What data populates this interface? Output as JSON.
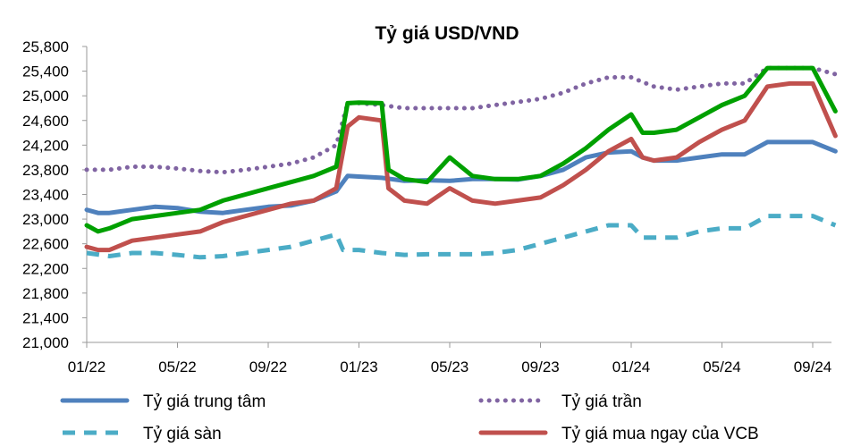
{
  "chart_data": {
    "type": "line",
    "title": "Tỷ giá USD/VND",
    "xlabel": "",
    "ylabel": "",
    "x_ticks": [
      "01/22",
      "05/22",
      "09/22",
      "01/23",
      "05/23",
      "09/23",
      "01/24",
      "05/24",
      "09/24"
    ],
    "y_ticks": [
      "21,000",
      "21,400",
      "21,800",
      "22,200",
      "22,600",
      "23,000",
      "23,400",
      "23,800",
      "24,200",
      "24,600",
      "25,000",
      "25,400",
      "25,800"
    ],
    "ylim": [
      21000,
      25800
    ],
    "x_unit": "months since 01/22",
    "xlim": [
      0,
      33
    ],
    "legend_position": "bottom",
    "grid": false,
    "series": [
      {
        "name": "Tỷ giá trung tâm",
        "color": "#4f81bd",
        "style": "solid",
        "points": [
          [
            0,
            23150
          ],
          [
            0.5,
            23100
          ],
          [
            1,
            23100
          ],
          [
            2,
            23150
          ],
          [
            3,
            23200
          ],
          [
            4,
            23180
          ],
          [
            5,
            23120
          ],
          [
            6,
            23100
          ],
          [
            7,
            23150
          ],
          [
            8,
            23200
          ],
          [
            9,
            23220
          ],
          [
            10,
            23300
          ],
          [
            11,
            23450
          ],
          [
            11.5,
            23700
          ],
          [
            12,
            23690
          ],
          [
            13,
            23670
          ],
          [
            14,
            23620
          ],
          [
            15,
            23630
          ],
          [
            16,
            23620
          ],
          [
            17,
            23650
          ],
          [
            18,
            23650
          ],
          [
            19,
            23640
          ],
          [
            20,
            23700
          ],
          [
            21,
            23800
          ],
          [
            22,
            24000
          ],
          [
            23,
            24080
          ],
          [
            24,
            24100
          ],
          [
            24.5,
            24000
          ],
          [
            25,
            23950
          ],
          [
            26,
            23950
          ],
          [
            27,
            24000
          ],
          [
            28,
            24050
          ],
          [
            29,
            24050
          ],
          [
            30,
            24250
          ],
          [
            31,
            24250
          ],
          [
            32,
            24250
          ],
          [
            33,
            24100
          ]
        ]
      },
      {
        "name": "Tỷ giá trần",
        "color": "#8064a2",
        "style": "dotted",
        "points": [
          [
            0,
            23800
          ],
          [
            1,
            23800
          ],
          [
            2,
            23850
          ],
          [
            3,
            23850
          ],
          [
            4,
            23820
          ],
          [
            5,
            23780
          ],
          [
            6,
            23760
          ],
          [
            7,
            23800
          ],
          [
            8,
            23850
          ],
          [
            9,
            23900
          ],
          [
            10,
            24000
          ],
          [
            11,
            24200
          ],
          [
            11.5,
            24880
          ],
          [
            12,
            24880
          ],
          [
            13,
            24850
          ],
          [
            14,
            24800
          ],
          [
            15,
            24800
          ],
          [
            16,
            24800
          ],
          [
            17,
            24800
          ],
          [
            18,
            24850
          ],
          [
            19,
            24900
          ],
          [
            20,
            24950
          ],
          [
            21,
            25050
          ],
          [
            22,
            25200
          ],
          [
            23,
            25300
          ],
          [
            24,
            25300
          ],
          [
            25,
            25150
          ],
          [
            26,
            25100
          ],
          [
            27,
            25150
          ],
          [
            28,
            25200
          ],
          [
            29,
            25200
          ],
          [
            30,
            25450
          ],
          [
            31,
            25450
          ],
          [
            32,
            25450
          ],
          [
            33,
            25350
          ]
        ]
      },
      {
        "name": "Tỷ giá sàn",
        "color": "#4bacc6",
        "style": "dashed",
        "points": [
          [
            0,
            22450
          ],
          [
            1,
            22400
          ],
          [
            2,
            22450
          ],
          [
            3,
            22450
          ],
          [
            4,
            22420
          ],
          [
            5,
            22380
          ],
          [
            6,
            22400
          ],
          [
            7,
            22450
          ],
          [
            8,
            22500
          ],
          [
            9,
            22550
          ],
          [
            10,
            22650
          ],
          [
            11,
            22750
          ],
          [
            11.3,
            22500
          ],
          [
            12,
            22500
          ],
          [
            13,
            22450
          ],
          [
            14,
            22420
          ],
          [
            15,
            22430
          ],
          [
            16,
            22430
          ],
          [
            17,
            22430
          ],
          [
            18,
            22450
          ],
          [
            19,
            22500
          ],
          [
            20,
            22600
          ],
          [
            21,
            22700
          ],
          [
            22,
            22800
          ],
          [
            23,
            22900
          ],
          [
            24,
            22900
          ],
          [
            24.5,
            22700
          ],
          [
            25,
            22700
          ],
          [
            26,
            22700
          ],
          [
            27,
            22800
          ],
          [
            28,
            22850
          ],
          [
            29,
            22850
          ],
          [
            30,
            23050
          ],
          [
            31,
            23050
          ],
          [
            32,
            23050
          ],
          [
            33,
            22900
          ]
        ]
      },
      {
        "name": "Tỷ giá mua ngay của VCB",
        "color": "#c0504d",
        "style": "solid",
        "points": [
          [
            0,
            22550
          ],
          [
            0.5,
            22500
          ],
          [
            1,
            22500
          ],
          [
            2,
            22650
          ],
          [
            3,
            22700
          ],
          [
            4,
            22750
          ],
          [
            5,
            22800
          ],
          [
            6,
            22950
          ],
          [
            7,
            23050
          ],
          [
            8,
            23150
          ],
          [
            9,
            23250
          ],
          [
            10,
            23300
          ],
          [
            11,
            23500
          ],
          [
            11.5,
            24500
          ],
          [
            12,
            24650
          ],
          [
            13,
            24600
          ],
          [
            13.3,
            23500
          ],
          [
            14,
            23300
          ],
          [
            15,
            23250
          ],
          [
            16,
            23500
          ],
          [
            17,
            23300
          ],
          [
            18,
            23250
          ],
          [
            19,
            23300
          ],
          [
            20,
            23350
          ],
          [
            21,
            23550
          ],
          [
            22,
            23800
          ],
          [
            23,
            24100
          ],
          [
            24,
            24300
          ],
          [
            24.5,
            24000
          ],
          [
            25,
            23950
          ],
          [
            26,
            24000
          ],
          [
            27,
            24250
          ],
          [
            28,
            24450
          ],
          [
            29,
            24600
          ],
          [
            30,
            25150
          ],
          [
            31,
            25200
          ],
          [
            32,
            25200
          ],
          [
            33,
            24350
          ]
        ]
      },
      {
        "name": "",
        "color": "#00a000",
        "style": "solid",
        "points": [
          [
            0,
            22900
          ],
          [
            0.5,
            22800
          ],
          [
            1,
            22850
          ],
          [
            2,
            23000
          ],
          [
            3,
            23050
          ],
          [
            4,
            23100
          ],
          [
            5,
            23150
          ],
          [
            6,
            23300
          ],
          [
            7,
            23400
          ],
          [
            8,
            23500
          ],
          [
            9,
            23600
          ],
          [
            10,
            23700
          ],
          [
            11,
            23850
          ],
          [
            11.5,
            24880
          ],
          [
            12,
            24890
          ],
          [
            13,
            24880
          ],
          [
            13.3,
            23800
          ],
          [
            14,
            23650
          ],
          [
            15,
            23600
          ],
          [
            16,
            24000
          ],
          [
            17,
            23700
          ],
          [
            18,
            23650
          ],
          [
            19,
            23650
          ],
          [
            20,
            23700
          ],
          [
            21,
            23900
          ],
          [
            22,
            24150
          ],
          [
            23,
            24450
          ],
          [
            24,
            24700
          ],
          [
            24.5,
            24400
          ],
          [
            25,
            24400
          ],
          [
            26,
            24450
          ],
          [
            27,
            24650
          ],
          [
            28,
            24850
          ],
          [
            29,
            25000
          ],
          [
            30,
            25450
          ],
          [
            31,
            25450
          ],
          [
            32,
            25450
          ],
          [
            33,
            24750
          ]
        ]
      }
    ]
  }
}
